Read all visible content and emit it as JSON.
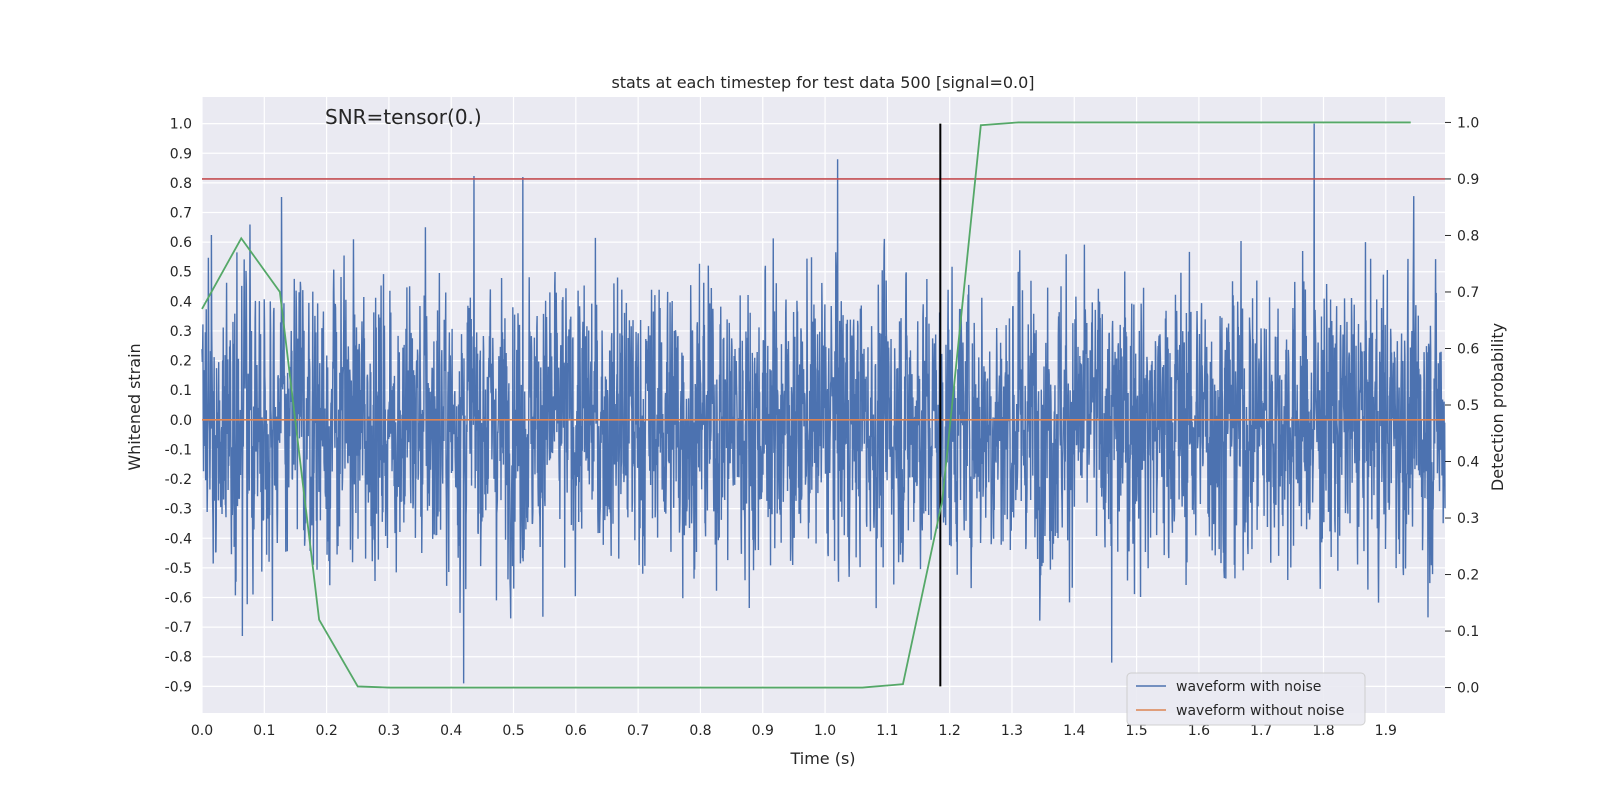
{
  "chart_data": {
    "type": "line",
    "title": "stats at each timestep for test data 500 [signal=0.0]",
    "xlabel": "Time (s)",
    "ylabel": "Whitened strain",
    "y2label": "Detection probability",
    "annotation": "SNR=tensor(0.)",
    "xlim": [
      0.0,
      1.995
    ],
    "ylim": [
      -0.99,
      1.09
    ],
    "y2lim": [
      -0.045,
      1.045
    ],
    "xticks": [
      "0.0",
      "0.1",
      "0.2",
      "0.3",
      "0.4",
      "0.5",
      "0.6",
      "0.7",
      "0.8",
      "0.9",
      "1.0",
      "1.1",
      "1.2",
      "1.3",
      "1.4",
      "1.5",
      "1.6",
      "1.7",
      "1.8",
      "1.9"
    ],
    "yticks": [
      "1.0",
      "0.9",
      "0.8",
      "0.7",
      "0.6",
      "0.5",
      "0.4",
      "0.3",
      "0.2",
      "0.1",
      "0.0",
      "-0.1",
      "-0.2",
      "-0.3",
      "-0.4",
      "-0.5",
      "-0.6",
      "-0.7",
      "-0.8",
      "-0.9"
    ],
    "y2ticks": [
      "1.0",
      "0.9",
      "0.8",
      "0.7",
      "0.6",
      "0.5",
      "0.4",
      "0.3",
      "0.2",
      "0.1",
      "0.0"
    ],
    "grid": true,
    "legend_placement": "lower-right",
    "colors": {
      "background": "#eaeaf2",
      "grid": "#ffffff",
      "noisy": "#4c72b0",
      "clean": "#dd8452",
      "probability": "#55a868",
      "threshold": "#c44e52",
      "marker": "#000000"
    },
    "series": [
      {
        "name": "waveform with noise",
        "kind": "noise",
        "x_range": [
          0.0,
          1.995
        ],
        "samples": 4096,
        "y_range": [
          -0.89,
          1.0
        ],
        "notable_peaks": [
          {
            "x": 0.42,
            "y": -0.89
          },
          {
            "x": 0.515,
            "y": 0.82
          },
          {
            "x": 1.02,
            "y": 0.88
          },
          {
            "x": 1.785,
            "y": 1.0
          },
          {
            "x": 1.46,
            "y": -0.82
          },
          {
            "x": 0.065,
            "y": -0.73
          }
        ]
      },
      {
        "name": "waveform without noise",
        "x": [
          0.0,
          1.995
        ],
        "y": [
          0.0,
          0.0
        ]
      },
      {
        "axis": "right",
        "x": [
          0.0,
          0.063,
          0.125,
          0.188,
          0.25,
          0.3,
          0.38,
          1.06,
          1.125,
          1.188,
          1.25,
          1.31,
          1.37,
          1.5,
          1.94
        ],
        "y": [
          0.67,
          0.795,
          0.7,
          0.12,
          0.002,
          0.0,
          0.0,
          0.0,
          0.006,
          0.33,
          0.995,
          1.0,
          1.0,
          1.0,
          1.0
        ]
      }
    ],
    "hlines": [
      {
        "axis": "right",
        "y": 0.9
      }
    ],
    "vlines": [
      {
        "x": 1.185,
        "y_from": -0.9,
        "y_to": 1.0
      }
    ]
  }
}
